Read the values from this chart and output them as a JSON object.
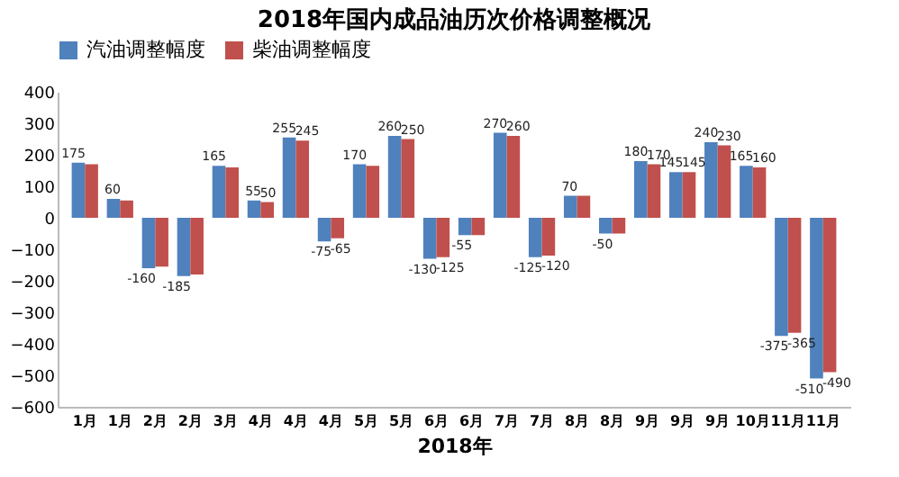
{
  "chart_data": {
    "type": "bar",
    "title": "2018年国内成品油历次价格调整概况",
    "xlabel": "2018年",
    "categories": [
      "1月",
      "1月",
      "2月",
      "2月",
      "3月",
      "4月",
      "4月",
      "4月",
      "5月",
      "5月",
      "6月",
      "6月",
      "7月",
      "7月",
      "8月",
      "8月",
      "9月",
      "9月",
      "9月",
      "10月",
      "11月",
      "11月"
    ],
    "series": [
      {
        "name": "汽油调整幅度",
        "color": "#4f81bd",
        "values": [
          175,
          60,
          -160,
          -185,
          165,
          55,
          255,
          -75,
          170,
          260,
          -130,
          -55,
          270,
          -125,
          70,
          -50,
          180,
          145,
          240,
          165,
          -375,
          -510
        ],
        "value_labels": [
          "175",
          "60",
          "-160",
          "-185",
          "165",
          "55",
          "255",
          "-75",
          "170",
          "260",
          "-130",
          "-55",
          "270",
          "-125",
          "70",
          "-50",
          "180",
          "145",
          "240",
          "165",
          "-375",
          "-510"
        ]
      },
      {
        "name": "柴油调整幅度",
        "color": "#c0504d",
        "values": [
          170,
          55,
          -155,
          -180,
          160,
          50,
          245,
          -65,
          165,
          250,
          -125,
          -55,
          260,
          -120,
          70,
          -50,
          170,
          145,
          230,
          160,
          -365,
          -490
        ],
        "value_labels": [
          null,
          null,
          null,
          null,
          null,
          "50",
          "245",
          "-65",
          null,
          "250",
          "-125",
          null,
          "260",
          "-120",
          null,
          null,
          "170",
          "145",
          "230",
          "160",
          "-365",
          "-490"
        ]
      }
    ],
    "ylim": [
      -600,
      400
    ],
    "yticks": [
      -600,
      -500,
      -400,
      -300,
      -200,
      -100,
      0,
      100,
      200,
      300,
      400
    ],
    "grid": false,
    "legend": "top"
  }
}
